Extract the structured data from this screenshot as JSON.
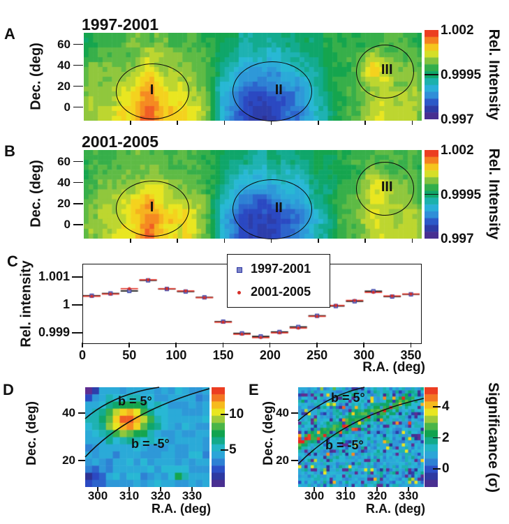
{
  "colors": {
    "background": "#ffffff",
    "axis": "#111111",
    "colormap": [
      [
        0.0,
        "#5e2d91"
      ],
      [
        0.08,
        "#2e3192"
      ],
      [
        0.17,
        "#2b4ac4"
      ],
      [
        0.27,
        "#2f8fd8"
      ],
      [
        0.37,
        "#29b9d8"
      ],
      [
        0.46,
        "#13ab8e"
      ],
      [
        0.53,
        "#0ca24f"
      ],
      [
        0.61,
        "#4cb648"
      ],
      [
        0.68,
        "#a0cb3b"
      ],
      [
        0.76,
        "#f3ea1d"
      ],
      [
        0.85,
        "#f7a51f"
      ],
      [
        0.92,
        "#f05a24"
      ],
      [
        1.0,
        "#e8251f"
      ]
    ],
    "series_1997_line": "#151515",
    "series_1997_marker": "#7d85c8",
    "series_1997_marker_edge": "#2c35a2",
    "series_2001_line": "#e23c30",
    "series_2001_marker": "#d62f28"
  },
  "chart_data": {
    "a": {
      "type": "heatmap",
      "panel_letter": "A",
      "title": "1997-2001",
      "ylabel": "Dec. (deg)",
      "yticks": [
        60,
        40,
        20,
        0
      ],
      "xticks_minor": [
        50,
        100,
        150,
        200,
        250,
        300,
        350
      ],
      "xlim": [
        0,
        360
      ],
      "ylim": [
        -13,
        71
      ],
      "regions": [
        {
          "label": "I",
          "ra": 72.5,
          "dec": 16,
          "rx_deg": 38.5,
          "ry_deg": 26,
          "dx": 0
        },
        {
          "label": "II",
          "ra": 200.3,
          "dec": 15.5,
          "rx_deg": 41.5,
          "ry_deg": 28,
          "dx": 10
        },
        {
          "label": "III",
          "ra": 320,
          "dec": 35,
          "rx_deg": 30,
          "ry_deg": 25,
          "dx": 4
        }
      ],
      "colorbar": {
        "label": "Rel. Intensity",
        "range": [
          0.997,
          1.002
        ],
        "ticks": [
          {
            "v": 1.002,
            "label": "1.002"
          },
          {
            "v": 0.9995,
            "label": "0.9995"
          },
          {
            "v": 0.997,
            "label": "0.997"
          }
        ]
      },
      "render": {
        "seed": 7,
        "cygnus_amp": 0.00065
      }
    },
    "b": {
      "type": "heatmap",
      "panel_letter": "B",
      "title": "2001-2005",
      "ylabel": "Dec. (deg)",
      "yticks": [
        60,
        40,
        20,
        0
      ],
      "xticks_minor": [
        50,
        100,
        150,
        200,
        250,
        300,
        350
      ],
      "xlim": [
        0,
        360
      ],
      "ylim": [
        -13,
        71
      ],
      "regions": [
        {
          "label": "I",
          "ra": 72.5,
          "dec": 16,
          "rx_deg": 38.5,
          "ry_deg": 26,
          "dx": 0
        },
        {
          "label": "II",
          "ra": 200.3,
          "dec": 15.5,
          "rx_deg": 41.5,
          "ry_deg": 28,
          "dx": 10
        },
        {
          "label": "III",
          "ra": 320,
          "dec": 35,
          "rx_deg": 30,
          "ry_deg": 25,
          "dx": 4
        }
      ],
      "colorbar": {
        "label": "Rel. Intensity",
        "range": [
          0.997,
          1.002
        ],
        "ticks": [
          {
            "v": 1.002,
            "label": "1.002"
          },
          {
            "v": 0.9995,
            "label": "0.9995"
          },
          {
            "v": 0.997,
            "label": "0.997"
          }
        ]
      },
      "render": {
        "seed": 13,
        "cygnus_amp": 0.00055
      }
    },
    "c": {
      "type": "scatter",
      "panel_letter": "C",
      "ylabel": "Rel. intensity",
      "xlabel": "R.A. (deg)",
      "xlim": [
        0,
        360
      ],
      "bin_width": 20,
      "yticks": [
        {
          "v": 1.001,
          "label": "1.001"
        },
        {
          "v": 1.0,
          "label": "1"
        },
        {
          "v": 0.999,
          "label": "0.999"
        }
      ],
      "xticks": [
        0,
        50,
        100,
        150,
        200,
        250,
        300,
        350
      ],
      "x": [
        10,
        30,
        50,
        70,
        90,
        110,
        130,
        150,
        170,
        190,
        210,
        230,
        250,
        270,
        290,
        310,
        330,
        350
      ],
      "series": [
        {
          "label": "1997-2001",
          "marker": "square",
          "values": [
            1.00033,
            1.00041,
            1.0005,
            1.00088,
            1.00057,
            1.00048,
            1.00027,
            0.9994,
            0.99898,
            0.99887,
            0.99903,
            0.99921,
            0.99961,
            0.99996,
            1.00013,
            1.00049,
            1.0003,
            1.00038
          ]
        },
        {
          "label": "2001-2005",
          "marker": "dot",
          "values": [
            1.00031,
            1.00039,
            1.00058,
            1.0009,
            1.00058,
            1.0005,
            1.00026,
            0.99938,
            0.99895,
            0.99883,
            0.999,
            0.99917,
            0.99959,
            0.99998,
            1.00016,
            1.00045,
            1.00032,
            1.00039
          ]
        }
      ]
    },
    "d": {
      "type": "heatmap",
      "panel_letter": "D",
      "ylabel": "Dec. (deg)",
      "xlabel": "R.A. (deg)",
      "yticks": [
        40,
        20
      ],
      "xticks": [
        300,
        310,
        320,
        330
      ],
      "xlim": [
        296,
        335.5
      ],
      "ylim": [
        9,
        51
      ],
      "annotations": [
        {
          "text": "b = 5°"
        },
        {
          "text": "b = -5°"
        }
      ],
      "colorbar": {
        "range": [
          -0.2,
          13.8
        ],
        "ticks": [
          {
            "v": 10,
            "label": "10"
          },
          {
            "v": 5,
            "label": "5"
          }
        ]
      },
      "render": {
        "seed": 21,
        "background": 4.3,
        "noise": 1.0,
        "blob": {
          "ra": 309.5,
          "dec": 37,
          "amp": 8.6,
          "sigma_ra": 5.2,
          "sigma_dec": 4.8
        }
      }
    },
    "e": {
      "type": "heatmap",
      "panel_letter": "E",
      "ylabel": "Dec. (deg)",
      "xlabel": "R.A. (deg)",
      "yticks": [
        40,
        20
      ],
      "xticks": [
        300,
        310,
        320,
        330
      ],
      "xlim": [
        295,
        335
      ],
      "ylim": [
        9,
        51
      ],
      "annotations": [
        {
          "text": "b = 5°"
        },
        {
          "text": "b = -5°"
        }
      ],
      "colorbar": {
        "label": "Significance (σ)",
        "range": [
          -1.17,
          5.26
        ],
        "ticks": [
          {
            "v": 4,
            "label": "4"
          },
          {
            "v": 2,
            "label": "2"
          },
          {
            "v": 0,
            "label": "0"
          }
        ]
      },
      "render": {
        "seed": 42,
        "background": 1.05,
        "noise": 0.95,
        "spike_prob": 0.045,
        "dip_prob": 0.12,
        "band_amp": 1.45
      }
    }
  }
}
